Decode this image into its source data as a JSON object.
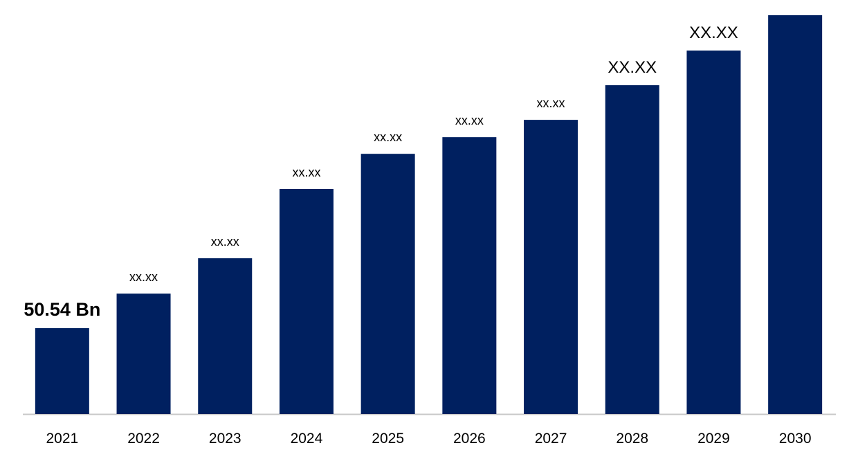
{
  "chart_data": {
    "type": "bar",
    "categories": [
      "2021",
      "2022",
      "2023",
      "2024",
      "2025",
      "2026",
      "2027",
      "2028",
      "2029",
      "2030"
    ],
    "values": [
      50.54,
      70.9,
      91.7,
      132.5,
      153.2,
      163.0,
      173.2,
      193.6,
      214.0,
      234.8
    ],
    "value_labels": [
      "50.54 Bn",
      "xx.xx",
      "xx.xx",
      "xx.xx",
      "xx.xx",
      "xx.xx",
      "xx.xx",
      "XX.XX",
      "XX.XX",
      null
    ],
    "color": "#002060"
  }
}
